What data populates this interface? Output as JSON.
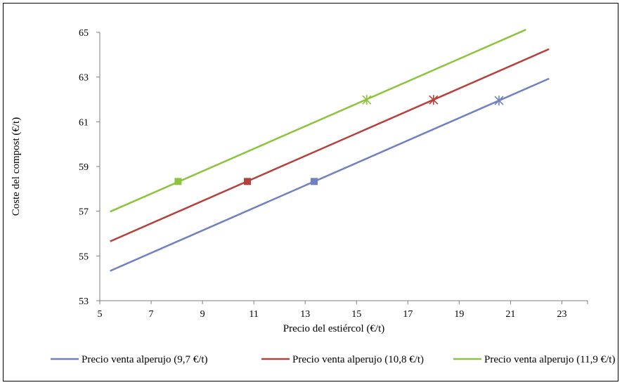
{
  "chart_data": {
    "type": "line",
    "title": "",
    "xlabel": "Precio del estiércol (€/t)",
    "ylabel": "Coste del compost (€/t)",
    "xlim": [
      5,
      24
    ],
    "ylim": [
      53,
      65
    ],
    "xticks": [
      5,
      7,
      9,
      11,
      13,
      15,
      17,
      19,
      21,
      23
    ],
    "yticks": [
      53,
      55,
      57,
      59,
      61,
      63,
      65
    ],
    "grid": false,
    "legend_position": "bottom",
    "series": [
      {
        "name": "Precio venta alperujo (9,7 €/t)",
        "color": "#7080c0",
        "x": [
          5.4,
          22.5
        ],
        "y": [
          54.33,
          62.93
        ],
        "markers": [
          {
            "symbol": "square",
            "x": 13.35,
            "y": 58.33
          },
          {
            "symbol": "star",
            "x": 20.55,
            "y": 61.95
          }
        ]
      },
      {
        "name": "Precio venta alperujo (10,8 €/t)",
        "color": "#b5403c",
        "x": [
          5.4,
          22.5
        ],
        "y": [
          55.65,
          64.25
        ],
        "markers": [
          {
            "symbol": "square",
            "x": 10.75,
            "y": 58.33
          },
          {
            "symbol": "star",
            "x": 18.0,
            "y": 61.98
          }
        ]
      },
      {
        "name": "Precio venta alperujo (11,9 €/t)",
        "color": "#8cc43c",
        "x": [
          5.4,
          21.6
        ],
        "y": [
          56.98,
          65.12
        ],
        "markers": [
          {
            "symbol": "square",
            "x": 8.05,
            "y": 58.33
          },
          {
            "symbol": "star",
            "x": 15.4,
            "y": 61.98
          }
        ]
      }
    ]
  }
}
